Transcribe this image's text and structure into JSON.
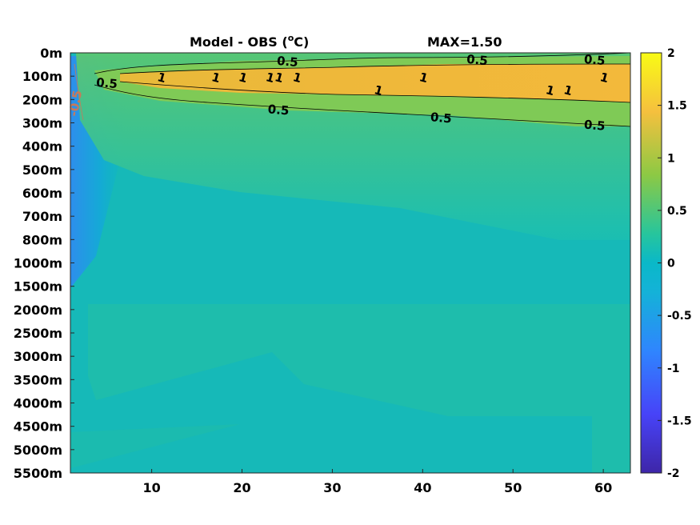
{
  "chart_data": {
    "type": "heatmap",
    "title": "Model - OBS (",
    "title_unit": "C)",
    "title_degree": "o",
    "max_label": "MAX=1.50",
    "x": {
      "ticks": [
        10,
        20,
        30,
        40,
        50,
        60
      ],
      "range": [
        1,
        63
      ]
    },
    "y": {
      "ticks": [
        "0m",
        "100m",
        "200m",
        "300m",
        "400m",
        "500m",
        "600m",
        "700m",
        "800m",
        "1000m",
        "1500m",
        "2000m",
        "2500m",
        "3000m",
        "3500m",
        "4000m",
        "4500m",
        "5000m",
        "5500m"
      ]
    },
    "colorbar": {
      "range": [
        -2,
        2
      ],
      "ticks": [
        "2",
        "1.5",
        "1",
        "0.5",
        "0",
        "-0.5",
        "-1",
        "-1.5",
        "-2"
      ],
      "colormap": [
        "#3e26a8",
        "#4743f8",
        "#2f85fe",
        "#14b2d8",
        "#27c59c",
        "#8dc944",
        "#f5c03e",
        "#f9fb15"
      ]
    },
    "field_description_values": {
      "background": 0.05,
      "core_max": 1.5,
      "deep_layer": 0.2,
      "near_surface_cold_west": -0.5
    },
    "contour_labels": [
      {
        "text": "0.5",
        "x": 25,
        "level": "120m-top"
      },
      {
        "text": "0.5",
        "x": 46,
        "level": "top"
      },
      {
        "text": "0.5",
        "x": 59,
        "level": "top"
      },
      {
        "text": "1",
        "x": 11,
        "level": "core"
      },
      {
        "text": "1",
        "x": 17,
        "level": "core"
      },
      {
        "text": "1",
        "x": 20,
        "level": "core"
      },
      {
        "text": "1",
        "x": 23,
        "level": "core"
      },
      {
        "text": "1",
        "x": 24,
        "level": "core"
      },
      {
        "text": "1",
        "x": 26,
        "level": "core"
      },
      {
        "text": "1",
        "x": 40,
        "level": "core"
      },
      {
        "text": "1",
        "x": 60,
        "level": "core"
      },
      {
        "text": "1",
        "x": 35,
        "level": "core-low"
      },
      {
        "text": "1",
        "x": 54,
        "level": "core-low"
      },
      {
        "text": "1",
        "x": 56,
        "level": "core-low"
      },
      {
        "text": "0.5",
        "x": 5,
        "level": "west"
      },
      {
        "text": "0.5",
        "x": 24,
        "level": "bottom"
      },
      {
        "text": "0.5",
        "x": 42,
        "level": "bottom"
      },
      {
        "text": "0.5",
        "x": 59,
        "level": "bottom"
      },
      {
        "text": "-0.5",
        "x": 2,
        "level": "cold"
      }
    ]
  }
}
